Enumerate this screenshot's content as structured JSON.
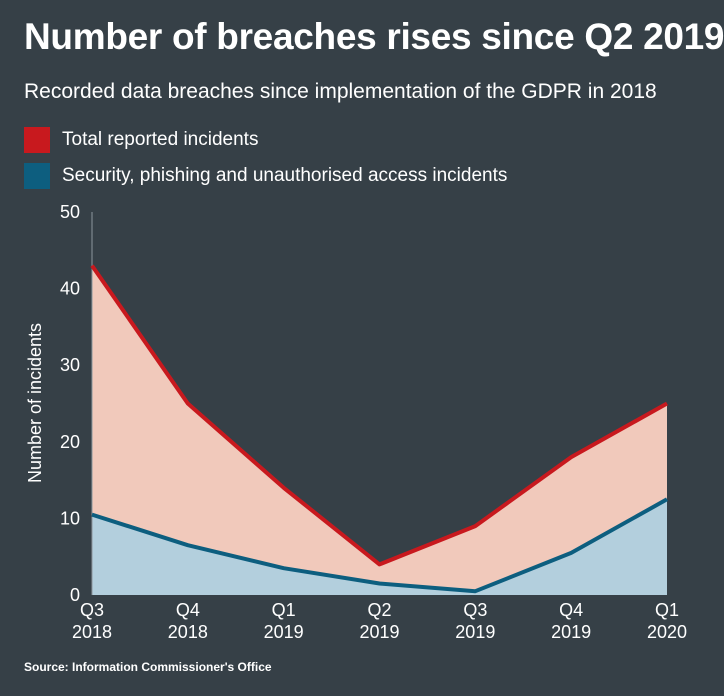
{
  "title": "Number of breaches rises since Q2 2019",
  "subtitle": "Recorded data breaches since implementation of the GDPR in 2018",
  "source": "Source: Information Commissioner's Office",
  "chart_data": {
    "type": "area",
    "categories": [
      [
        "Q3",
        "2018"
      ],
      [
        "Q4",
        "2018"
      ],
      [
        "Q1",
        "2019"
      ],
      [
        "Q2",
        "2019"
      ],
      [
        "Q3",
        "2019"
      ],
      [
        "Q4",
        "2019"
      ],
      [
        "Q1",
        "2020"
      ]
    ],
    "series": [
      {
        "name": "Total reported incidents",
        "values": [
          43,
          25,
          14,
          4,
          9,
          18,
          25
        ],
        "line_color": "#c8191e",
        "fill_color": "#f1c9bb"
      },
      {
        "name": "Security, phishing and unauthorised access incidents",
        "values": [
          10.5,
          6.5,
          3.5,
          1.5,
          0.5,
          5.5,
          12.5
        ],
        "line_color": "#0d5e7f",
        "fill_color": "#b3cfdd"
      }
    ],
    "ylabel": "Number of incidents",
    "xlabel": "",
    "ylim": [
      0,
      50
    ],
    "yticks": [
      0,
      10,
      20,
      30,
      40,
      50
    ],
    "grid": false,
    "legend_position": "top-left"
  }
}
